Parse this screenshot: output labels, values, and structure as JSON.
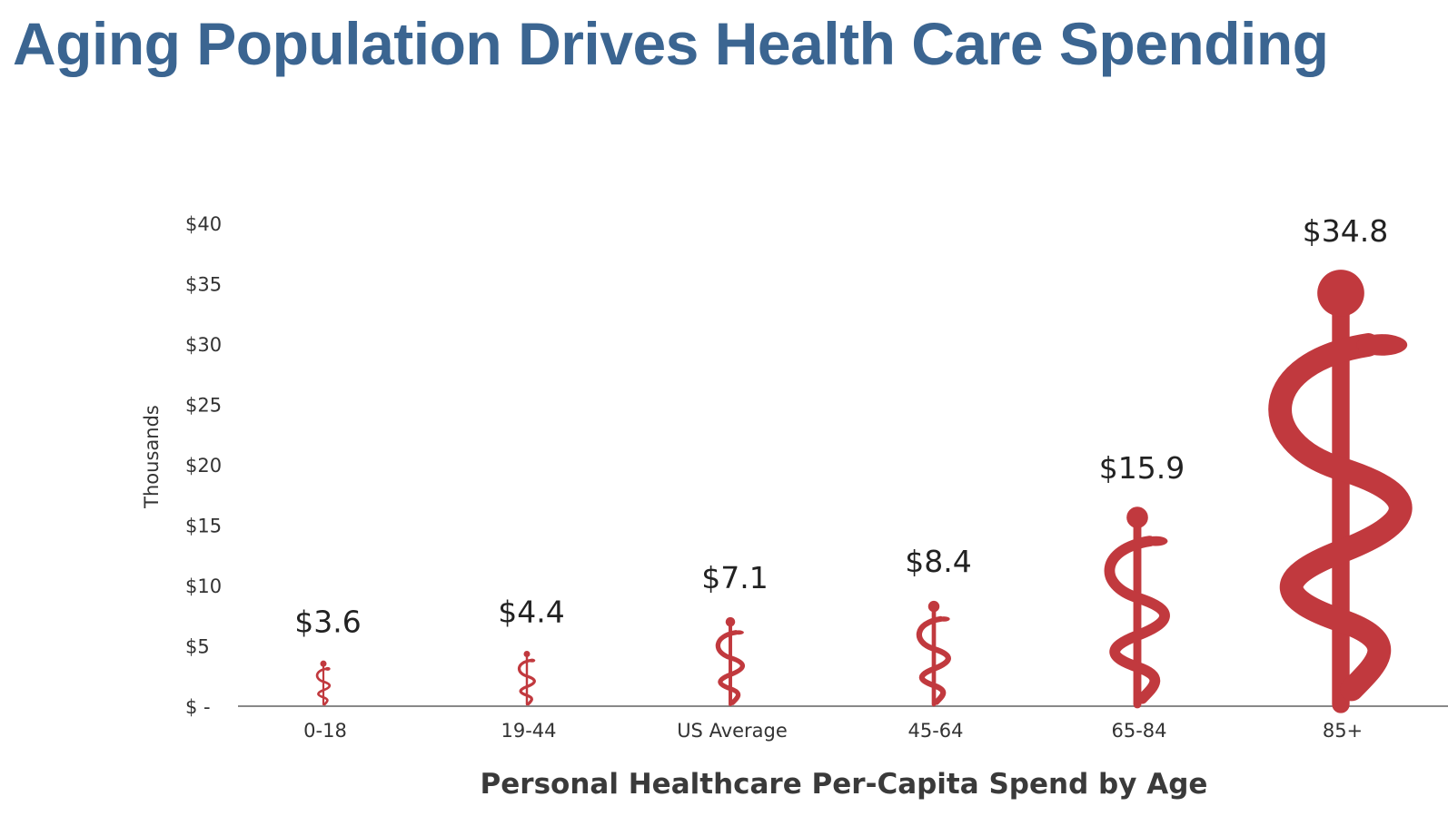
{
  "title": "Aging Population Drives Health Care Spending",
  "chart_data": {
    "type": "bar",
    "mark_style": "caduceus-icon",
    "categories": [
      "0-18",
      "19-44",
      "US Average",
      "45-64",
      "65-84",
      "85+"
    ],
    "values": [
      3.6,
      4.4,
      7.1,
      8.4,
      15.9,
      34.8
    ],
    "data_labels": [
      "$3.6",
      "$4.4",
      "$7.1",
      "$8.4",
      "$15.9",
      "$34.8"
    ],
    "ylabel": "Thousands",
    "xlabel": "Personal Healthcare Per-Capita Spend by Age",
    "ylim": [
      0,
      40
    ],
    "yticks": [
      0,
      5,
      10,
      15,
      20,
      25,
      30,
      35,
      40
    ],
    "ytick_labels": [
      "$ -",
      "$5",
      "$10",
      "$15",
      "$20",
      "$25",
      "$30",
      "$35",
      "$40"
    ],
    "grid": false,
    "legend": "none",
    "colors": {
      "mark": "#c1393e",
      "axis": "#888888",
      "title": "#3b6591"
    }
  }
}
